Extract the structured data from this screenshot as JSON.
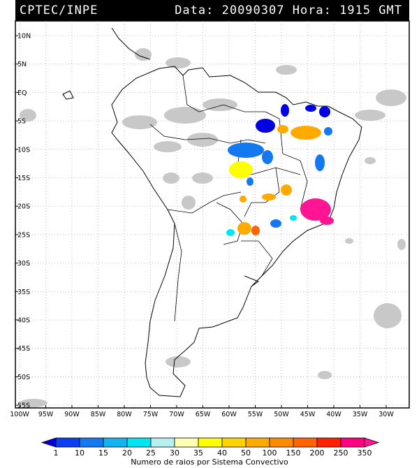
{
  "header": {
    "source": "CPTEC/INPE",
    "timestamp": "Data: 20090307 Hora: 1915 GMT"
  },
  "map": {
    "lat_labels": [
      "10N",
      "5N",
      "EQ",
      "5S",
      "10S",
      "15S",
      "20S",
      "25S",
      "30S",
      "35S",
      "40S",
      "45S",
      "50S",
      "55S"
    ],
    "lon_labels": [
      "100W",
      "95W",
      "90W",
      "85W",
      "80W",
      "75W",
      "70W",
      "65W",
      "60W",
      "55W",
      "50W",
      "45W",
      "40W",
      "35W",
      "30W"
    ]
  },
  "colorbar": {
    "ticks": [
      "1",
      "10",
      "15",
      "20",
      "25",
      "30",
      "35",
      "40",
      "50",
      "100",
      "150",
      "200",
      "250",
      "350"
    ],
    "colors": [
      "#0000e0",
      "#0a3ef0",
      "#1478f0",
      "#14b4f0",
      "#00e6f0",
      "#b4f0f0",
      "#ffffb4",
      "#ffff00",
      "#ffd200",
      "#ffaa00",
      "#ff8c00",
      "#ff6400",
      "#ff2000",
      "#ff0080",
      "#ff1493"
    ],
    "caption": "Numero de raios por Sistema Convectivo"
  },
  "colors": {
    "cloud": "#c8c8c8",
    "grid": "#999999",
    "land_border": "#000000",
    "frame": "#000000"
  }
}
